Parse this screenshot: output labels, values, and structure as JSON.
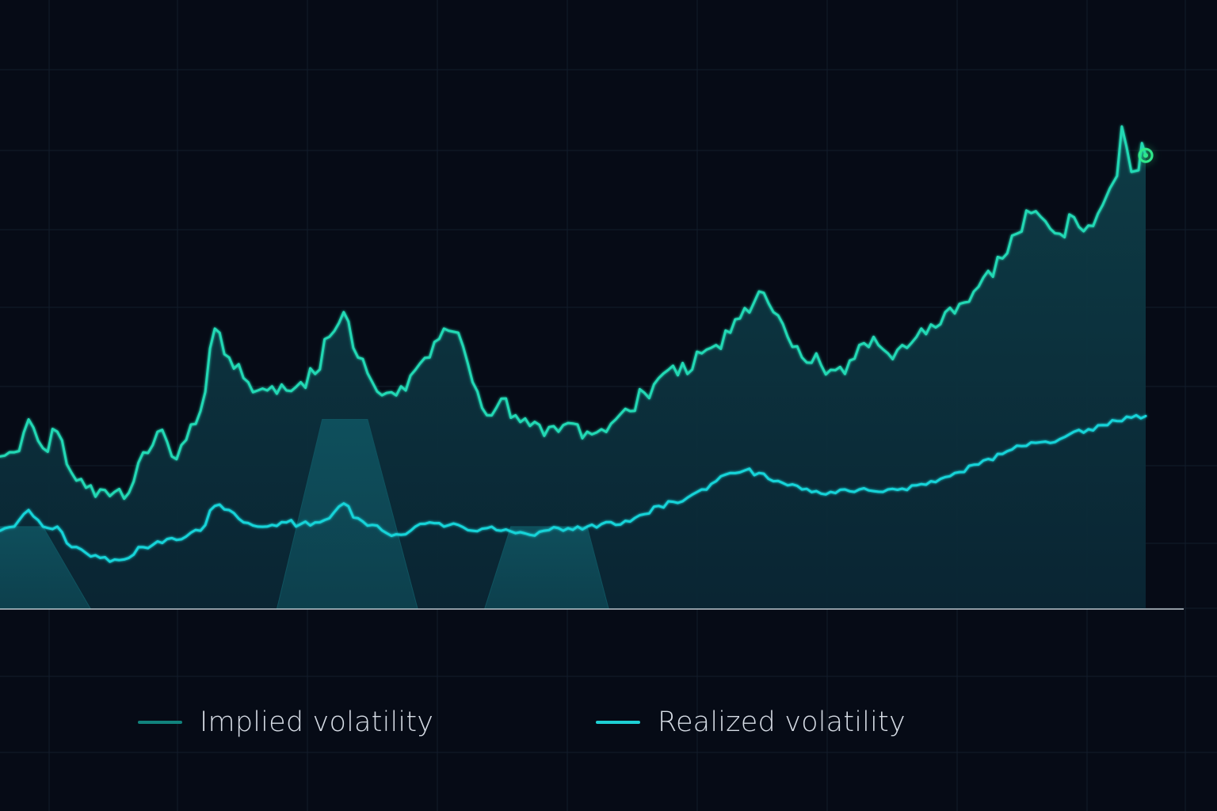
{
  "colors": {
    "background": "#060b16",
    "grid": "#131d2b",
    "implied_line": "#22d8b4",
    "realized_line": "#18d3d8",
    "fill_top": "#0e3e48",
    "fill_bottom": "#0a2634",
    "band": "#0f5562",
    "marker": "#2ee88a",
    "baseline": "#dfe8ee",
    "legend_implied": "#11837d",
    "legend_realized": "#1ed0d4"
  },
  "legend": {
    "implied_label": "Implied volatility",
    "realized_label": "Realized volatility"
  },
  "chart_data": {
    "type": "line",
    "title": "",
    "xlabel": "",
    "ylabel": "",
    "grid": true,
    "legend_position": "bottom",
    "x_range": [
      0,
      240
    ],
    "ylim": [
      0,
      70
    ],
    "series": [
      {
        "name": "Implied volatility",
        "key": "implied",
        "filled": true,
        "anchors": [
          [
            0,
            18.5
          ],
          [
            3,
            19
          ],
          [
            6,
            23
          ],
          [
            9,
            19.5
          ],
          [
            12,
            21.5
          ],
          [
            15,
            16.5
          ],
          [
            18,
            14.7
          ],
          [
            21,
            14.5
          ],
          [
            24,
            14.2
          ],
          [
            27,
            14.1
          ],
          [
            30,
            19
          ],
          [
            33,
            21.5
          ],
          [
            36,
            18.5
          ],
          [
            39,
            20.5
          ],
          [
            42,
            24
          ],
          [
            45,
            34
          ],
          [
            48,
            30.5
          ],
          [
            51,
            28
          ],
          [
            54,
            26.5
          ],
          [
            57,
            27
          ],
          [
            60,
            26.5
          ],
          [
            63,
            27.5
          ],
          [
            66,
            28.5
          ],
          [
            69,
            33
          ],
          [
            72,
            36
          ],
          [
            75,
            30.5
          ],
          [
            78,
            27.5
          ],
          [
            81,
            26.2
          ],
          [
            84,
            27
          ],
          [
            87,
            29
          ],
          [
            90,
            30.5
          ],
          [
            93,
            34
          ],
          [
            96,
            33.5
          ],
          [
            99,
            27.5
          ],
          [
            102,
            23.5
          ],
          [
            105,
            25.5
          ],
          [
            108,
            23.5
          ],
          [
            111,
            22.2
          ],
          [
            114,
            21
          ],
          [
            117,
            21.5
          ],
          [
            120,
            22.5
          ],
          [
            123,
            21.5
          ],
          [
            126,
            21.8
          ],
          [
            129,
            23
          ],
          [
            132,
            24
          ],
          [
            135,
            26.2
          ],
          [
            138,
            28
          ],
          [
            141,
            29.5
          ],
          [
            144,
            28.5
          ],
          [
            147,
            31
          ],
          [
            150,
            32
          ],
          [
            153,
            33.5
          ],
          [
            156,
            36.5
          ],
          [
            159,
            38.5
          ],
          [
            162,
            36
          ],
          [
            165,
            33
          ],
          [
            168,
            30.5
          ],
          [
            171,
            31
          ],
          [
            174,
            29
          ],
          [
            177,
            28.5
          ],
          [
            180,
            32
          ],
          [
            183,
            33
          ],
          [
            186,
            31
          ],
          [
            189,
            32
          ],
          [
            192,
            33
          ],
          [
            195,
            34.5
          ],
          [
            198,
            36
          ],
          [
            201,
            37
          ],
          [
            204,
            38.5
          ],
          [
            207,
            41
          ],
          [
            210,
            42.5
          ],
          [
            213,
            45.5
          ],
          [
            216,
            48
          ],
          [
            219,
            47
          ],
          [
            222,
            45.5
          ],
          [
            225,
            47.5
          ],
          [
            228,
            46.5
          ],
          [
            231,
            49
          ],
          [
            234,
            52
          ],
          [
            237,
            55
          ],
          [
            240,
            55
          ]
        ]
      },
      {
        "name": "Realized volatility",
        "key": "realized",
        "filled": false,
        "anchors": [
          [
            0,
            9.5
          ],
          [
            3,
            10
          ],
          [
            6,
            12
          ],
          [
            9,
            10
          ],
          [
            12,
            10
          ],
          [
            15,
            7.5
          ],
          [
            18,
            6.8
          ],
          [
            21,
            6.2
          ],
          [
            24,
            6
          ],
          [
            27,
            6.2
          ],
          [
            30,
            7.5
          ],
          [
            33,
            8.2
          ],
          [
            36,
            8.6
          ],
          [
            39,
            8.8
          ],
          [
            42,
            9.5
          ],
          [
            45,
            12.5
          ],
          [
            48,
            12
          ],
          [
            51,
            10.5
          ],
          [
            54,
            10
          ],
          [
            57,
            10.2
          ],
          [
            60,
            10.5
          ],
          [
            63,
            10.3
          ],
          [
            66,
            10.5
          ],
          [
            69,
            11
          ],
          [
            72,
            12.8
          ],
          [
            75,
            11
          ],
          [
            78,
            10.2
          ],
          [
            81,
            9.2
          ],
          [
            84,
            9
          ],
          [
            87,
            10
          ],
          [
            90,
            10.5
          ],
          [
            93,
            10
          ],
          [
            96,
            10.2
          ],
          [
            99,
            9.5
          ],
          [
            102,
            9.8
          ],
          [
            105,
            9.5
          ],
          [
            108,
            9.2
          ],
          [
            111,
            9
          ],
          [
            114,
            9.5
          ],
          [
            117,
            9.8
          ],
          [
            120,
            9.6
          ],
          [
            123,
            10
          ],
          [
            126,
            10.3
          ],
          [
            129,
            10.2
          ],
          [
            132,
            10.6
          ],
          [
            135,
            11.5
          ],
          [
            138,
            12.5
          ],
          [
            141,
            13
          ],
          [
            144,
            13.5
          ],
          [
            147,
            14.5
          ],
          [
            150,
            15.5
          ],
          [
            153,
            16.5
          ],
          [
            156,
            16.8
          ],
          [
            159,
            16.5
          ],
          [
            162,
            15.5
          ],
          [
            165,
            15
          ],
          [
            168,
            14.5
          ],
          [
            171,
            14.3
          ],
          [
            174,
            14.2
          ],
          [
            177,
            14.5
          ],
          [
            180,
            14.5
          ],
          [
            183,
            14.3
          ],
          [
            186,
            14.5
          ],
          [
            189,
            14.6
          ],
          [
            192,
            15
          ],
          [
            195,
            15.5
          ],
          [
            198,
            16
          ],
          [
            201,
            16.6
          ],
          [
            204,
            17.5
          ],
          [
            207,
            18.2
          ],
          [
            210,
            18.8
          ],
          [
            213,
            19.8
          ],
          [
            216,
            20.2
          ],
          [
            219,
            20.3
          ],
          [
            222,
            20.6
          ],
          [
            225,
            21.5
          ],
          [
            228,
            21.8
          ],
          [
            231,
            22.3
          ],
          [
            234,
            22.8
          ],
          [
            237,
            23.2
          ],
          [
            240,
            23.4
          ]
        ]
      }
    ],
    "bands": [
      {
        "x_top": [
          0,
          9
        ],
        "x_base": [
          -1,
          19
        ],
        "height": 10
      },
      {
        "x_top": [
          67.5,
          77
        ],
        "x_base": [
          58,
          87.5
        ],
        "height": 23
      },
      {
        "x_top": [
          107,
          123
        ],
        "x_base": [
          101.5,
          127.5
        ],
        "height": 10
      }
    ],
    "marker": {
      "series": "implied",
      "x": 240
    }
  }
}
